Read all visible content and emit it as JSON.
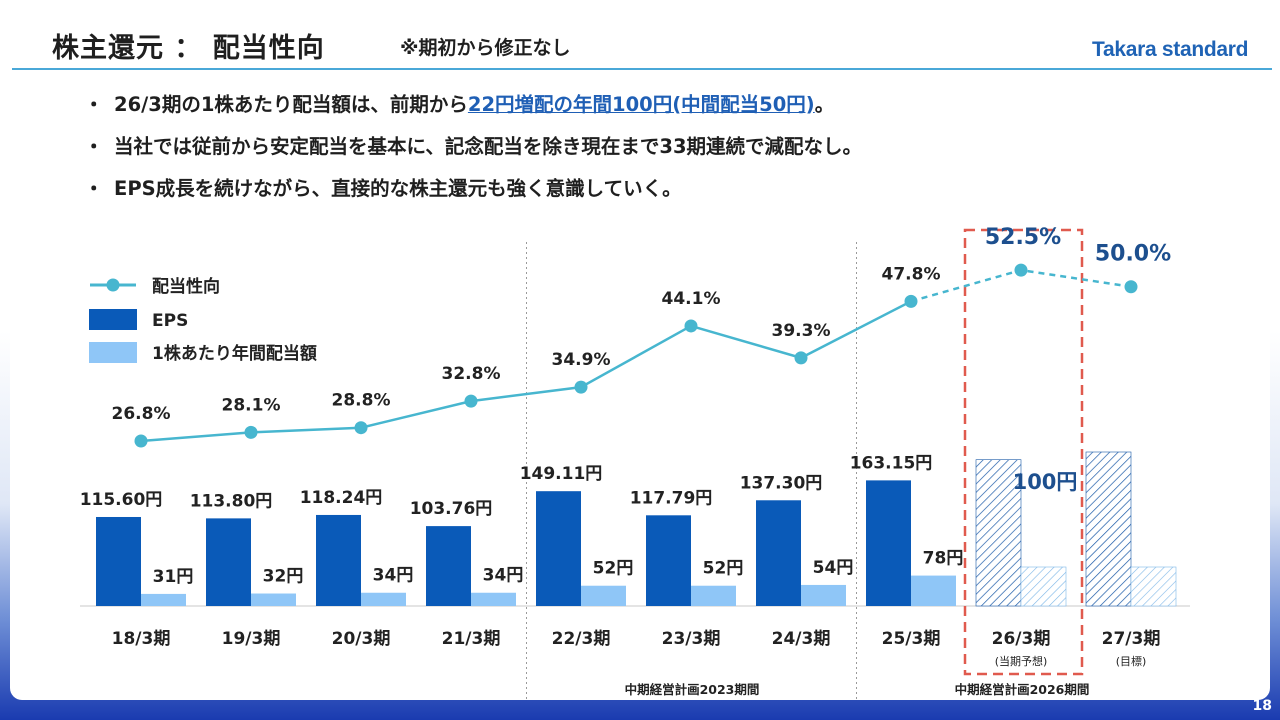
{
  "header": {
    "title": "株主還元 ： 配当性向",
    "subtitle": "※期初から修正なし",
    "logo": "Takara standard",
    "page_number": "18"
  },
  "bullets": [
    {
      "marker": "・",
      "prefix": "26/3期の1株あたり配当額は、前期から",
      "highlight": "22円増配の年間100円(中間配当50円)",
      "suffix": "。"
    },
    {
      "marker": "・",
      "prefix": "当社では従前から安定配当を基本に、記念配当を除き現在まで33期連続で減配なし。",
      "highlight": "",
      "suffix": ""
    },
    {
      "marker": "・",
      "prefix": "EPS成長を続けながら、直接的な株主還元も強く意識していく。",
      "highlight": "",
      "suffix": ""
    }
  ],
  "colors": {
    "eps": "#0a5ab8",
    "dividend": "#8fc6f7",
    "payout_line": "#47b6cf",
    "forecast_pct": "#1d4f8e",
    "forecast_box": "#e05a4e",
    "accent_text": "#1f5fb5"
  },
  "chart_data": {
    "type": "bar",
    "categories": [
      "18/3期",
      "19/3期",
      "20/3期",
      "21/3期",
      "22/3期",
      "23/3期",
      "24/3期",
      "25/3期",
      "26/3期",
      "27/3期"
    ],
    "category_notes": [
      "",
      "",
      "",
      "",
      "",
      "",
      "",
      "",
      "(当期予想)",
      "(目標)"
    ],
    "series": [
      {
        "name": "EPS",
        "values": [
          115.6,
          113.8,
          118.24,
          103.76,
          149.11,
          117.79,
          137.3,
          163.15,
          190.0,
          200.0
        ],
        "labels": [
          "115.60円",
          "113.80円",
          "118.24円",
          "103.76円",
          "149.11円",
          "117.79円",
          "137.30円",
          "163.15円",
          "",
          ""
        ],
        "forecast_from_index": 8
      },
      {
        "name": "1株あたり年間配当額",
        "values": [
          31,
          32,
          34,
          34,
          52,
          52,
          54,
          78,
          100,
          100
        ],
        "labels": [
          "31円",
          "32円",
          "34円",
          "34円",
          "52円",
          "52円",
          "54円",
          "78円",
          "100円",
          ""
        ],
        "forecast_from_index": 8
      },
      {
        "name": "配当性向",
        "type": "line",
        "values": [
          26.8,
          28.1,
          28.8,
          32.8,
          34.9,
          44.1,
          39.3,
          47.8,
          52.5,
          50.0
        ],
        "labels": [
          "26.8%",
          "28.1%",
          "28.8%",
          "32.8%",
          "34.9%",
          "44.1%",
          "39.3%",
          "47.8%",
          "52.5%",
          "50.0%"
        ],
        "dashed_from_index": 7
      }
    ],
    "legend": [
      "配当性向",
      "EPS",
      "1株あたり年間配当額"
    ],
    "legend_position": "top-left",
    "period_labels": [
      {
        "text": "中期経営計画2023期間",
        "categories": [
          "22/3期",
          "23/3期",
          "24/3期"
        ]
      },
      {
        "text": "中期経営計画2026期間",
        "categories": [
          "25/3期",
          "26/3期",
          "27/3期"
        ]
      }
    ],
    "highlighted_category": "26/3期",
    "grid": false
  }
}
